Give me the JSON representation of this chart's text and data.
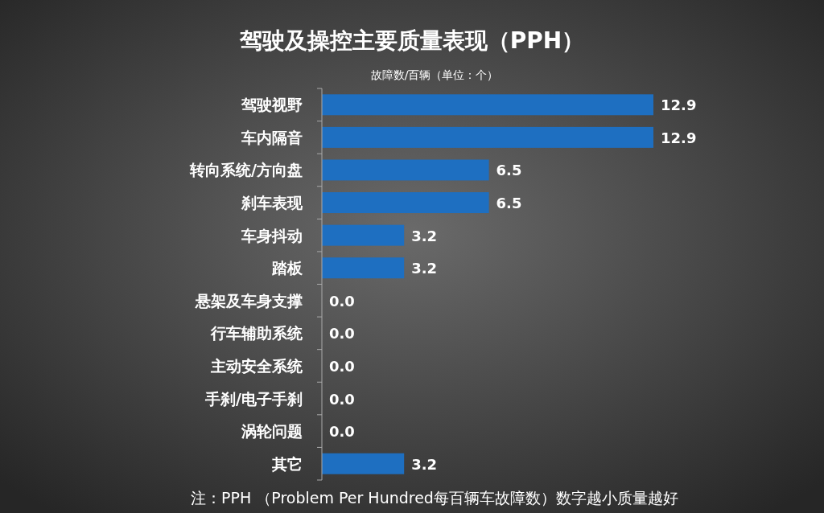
{
  "chart_data": {
    "type": "bar",
    "orientation": "horizontal",
    "title": "驾驶及操控主要质量表现（PPH）",
    "subtitle": "故障数/百辆（单位：个）",
    "categories": [
      "驾驶视野",
      "车内隔音",
      "转向系统/方向盘",
      "刹车表现",
      "车身抖动",
      "踏板",
      "悬架及车身支撑",
      "行车辅助系统",
      "主动安全系统",
      "手刹/电子手刹",
      "涡轮问题",
      "其它"
    ],
    "values": [
      12.9,
      12.9,
      6.5,
      6.5,
      3.2,
      3.2,
      0.0,
      0.0,
      0.0,
      0.0,
      0.0,
      3.2
    ],
    "value_labels": [
      "12.9",
      "12.9",
      "6.5",
      "6.5",
      "3.2",
      "3.2",
      "0.0",
      "0.0",
      "0.0",
      "0.0",
      "0.0",
      "3.2"
    ],
    "color": "#1e6fc1",
    "annotations": [
      "注：PPH （Problem Per Hundred每百辆车故障数）数字越小质量越好"
    ]
  }
}
